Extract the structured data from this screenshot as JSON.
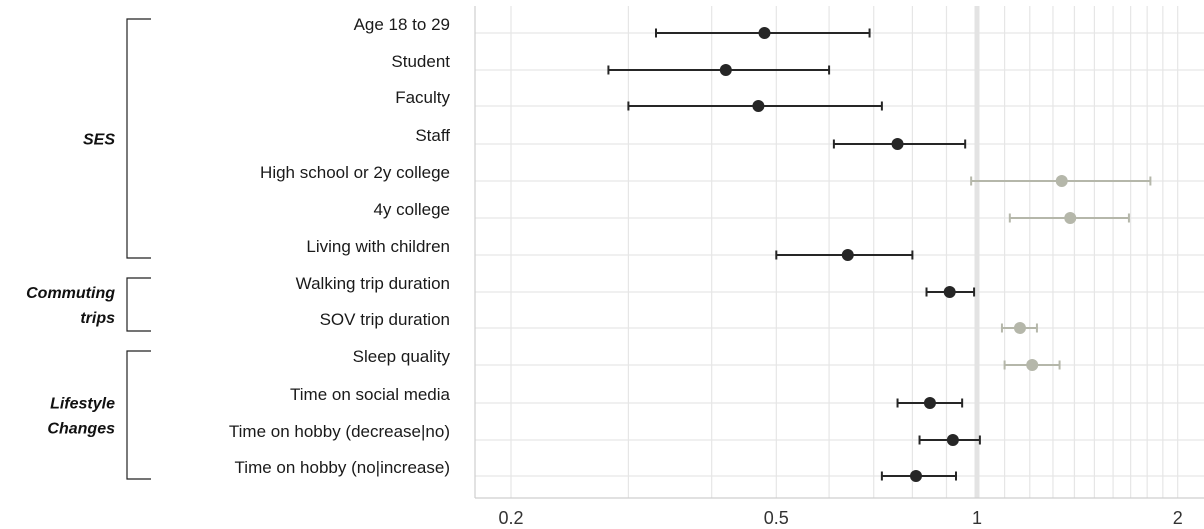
{
  "chart_data": {
    "type": "scatter",
    "title": "",
    "xlabel": "",
    "ylabel": "",
    "x_scale": "log",
    "xlim": [
      0.18,
      2.05
    ],
    "reference_line": 1,
    "grid": true,
    "x_ticks": [
      {
        "value": 0.2,
        "label": "0.2"
      },
      {
        "value": 0.5,
        "label": "0.5"
      },
      {
        "value": 1,
        "label": "1"
      },
      {
        "value": 2,
        "label": "2"
      }
    ],
    "colors": {
      "significant": "#262626",
      "not_significant": "#b5b7aa",
      "grid": "#e6e6e6",
      "reference": "#e3e3e3"
    },
    "rows": [
      {
        "label": "Age 18 to 29",
        "estimate": 0.48,
        "lower": 0.33,
        "upper": 0.69,
        "significant": true
      },
      {
        "label": "Student",
        "estimate": 0.42,
        "lower": 0.28,
        "upper": 0.6,
        "significant": true
      },
      {
        "label": "Faculty",
        "estimate": 0.47,
        "lower": 0.3,
        "upper": 0.72,
        "significant": true
      },
      {
        "label": "Staff",
        "estimate": 0.76,
        "lower": 0.61,
        "upper": 0.96,
        "significant": true
      },
      {
        "label": "High school or 2y college",
        "estimate": 1.34,
        "lower": 0.98,
        "upper": 1.82,
        "significant": false
      },
      {
        "label": "4y college",
        "estimate": 1.38,
        "lower": 1.12,
        "upper": 1.69,
        "significant": false
      },
      {
        "label": "Living with children",
        "estimate": 0.64,
        "lower": 0.5,
        "upper": 0.8,
        "significant": true
      },
      {
        "label": "Walking trip duration",
        "estimate": 0.91,
        "lower": 0.84,
        "upper": 0.99,
        "significant": true
      },
      {
        "label": "SOV trip duration",
        "estimate": 1.16,
        "lower": 1.09,
        "upper": 1.23,
        "significant": false
      },
      {
        "label": "Sleep quality",
        "estimate": 1.21,
        "lower": 1.1,
        "upper": 1.33,
        "significant": false
      },
      {
        "label": "Time on social media",
        "estimate": 0.85,
        "lower": 0.76,
        "upper": 0.95,
        "significant": true
      },
      {
        "label": "Time on hobby (decrease|no)",
        "estimate": 0.92,
        "lower": 0.82,
        "upper": 1.01,
        "significant": true
      },
      {
        "label": "Time on hobby (no|increase)",
        "estimate": 0.81,
        "lower": 0.72,
        "upper": 0.93,
        "significant": true
      }
    ],
    "groups": [
      {
        "label": "SES",
        "first_row": 0,
        "last_row": 6
      },
      {
        "label": "Commuting trips",
        "label_lines": [
          "Commuting",
          "trips"
        ],
        "first_row": 7,
        "last_row": 8
      },
      {
        "label": "Lifestyle Changes",
        "label_lines": [
          "Lifestyle",
          "Changes"
        ],
        "first_row": 9,
        "last_row": 12
      }
    ]
  }
}
